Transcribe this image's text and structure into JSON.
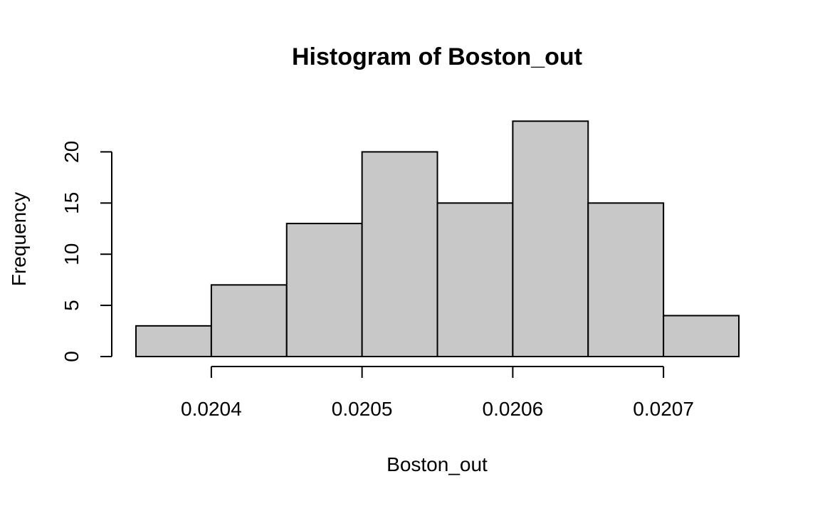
{
  "chart_data": {
    "type": "bar",
    "histogram": true,
    "title": "Histogram of Boston_out",
    "xlabel": "Boston_out",
    "ylabel": "Frequency",
    "bins": [
      {
        "start": 0.02035,
        "end": 0.0204,
        "count": 3
      },
      {
        "start": 0.0204,
        "end": 0.02045,
        "count": 7
      },
      {
        "start": 0.02045,
        "end": 0.0205,
        "count": 13
      },
      {
        "start": 0.0205,
        "end": 0.02055,
        "count": 20
      },
      {
        "start": 0.02055,
        "end": 0.0206,
        "count": 15
      },
      {
        "start": 0.0206,
        "end": 0.02065,
        "count": 23
      },
      {
        "start": 0.02065,
        "end": 0.0207,
        "count": 15
      },
      {
        "start": 0.0207,
        "end": 0.02075,
        "count": 4
      }
    ],
    "xlim": [
      0.02035,
      0.02075
    ],
    "ylim": [
      0,
      23
    ],
    "xticks": [
      {
        "value": 0.0204,
        "label": "0.0204"
      },
      {
        "value": 0.0205,
        "label": "0.0205"
      },
      {
        "value": 0.0206,
        "label": "0.0206"
      },
      {
        "value": 0.0207,
        "label": "0.0207"
      }
    ],
    "yticks": [
      {
        "value": 0,
        "label": "0"
      },
      {
        "value": 5,
        "label": "5"
      },
      {
        "value": 10,
        "label": "10"
      },
      {
        "value": 15,
        "label": "15"
      },
      {
        "value": 20,
        "label": "20"
      }
    ],
    "bar_fill": "#c8c8c8",
    "bar_stroke": "#000000",
    "grid": false,
    "legend": "none"
  }
}
